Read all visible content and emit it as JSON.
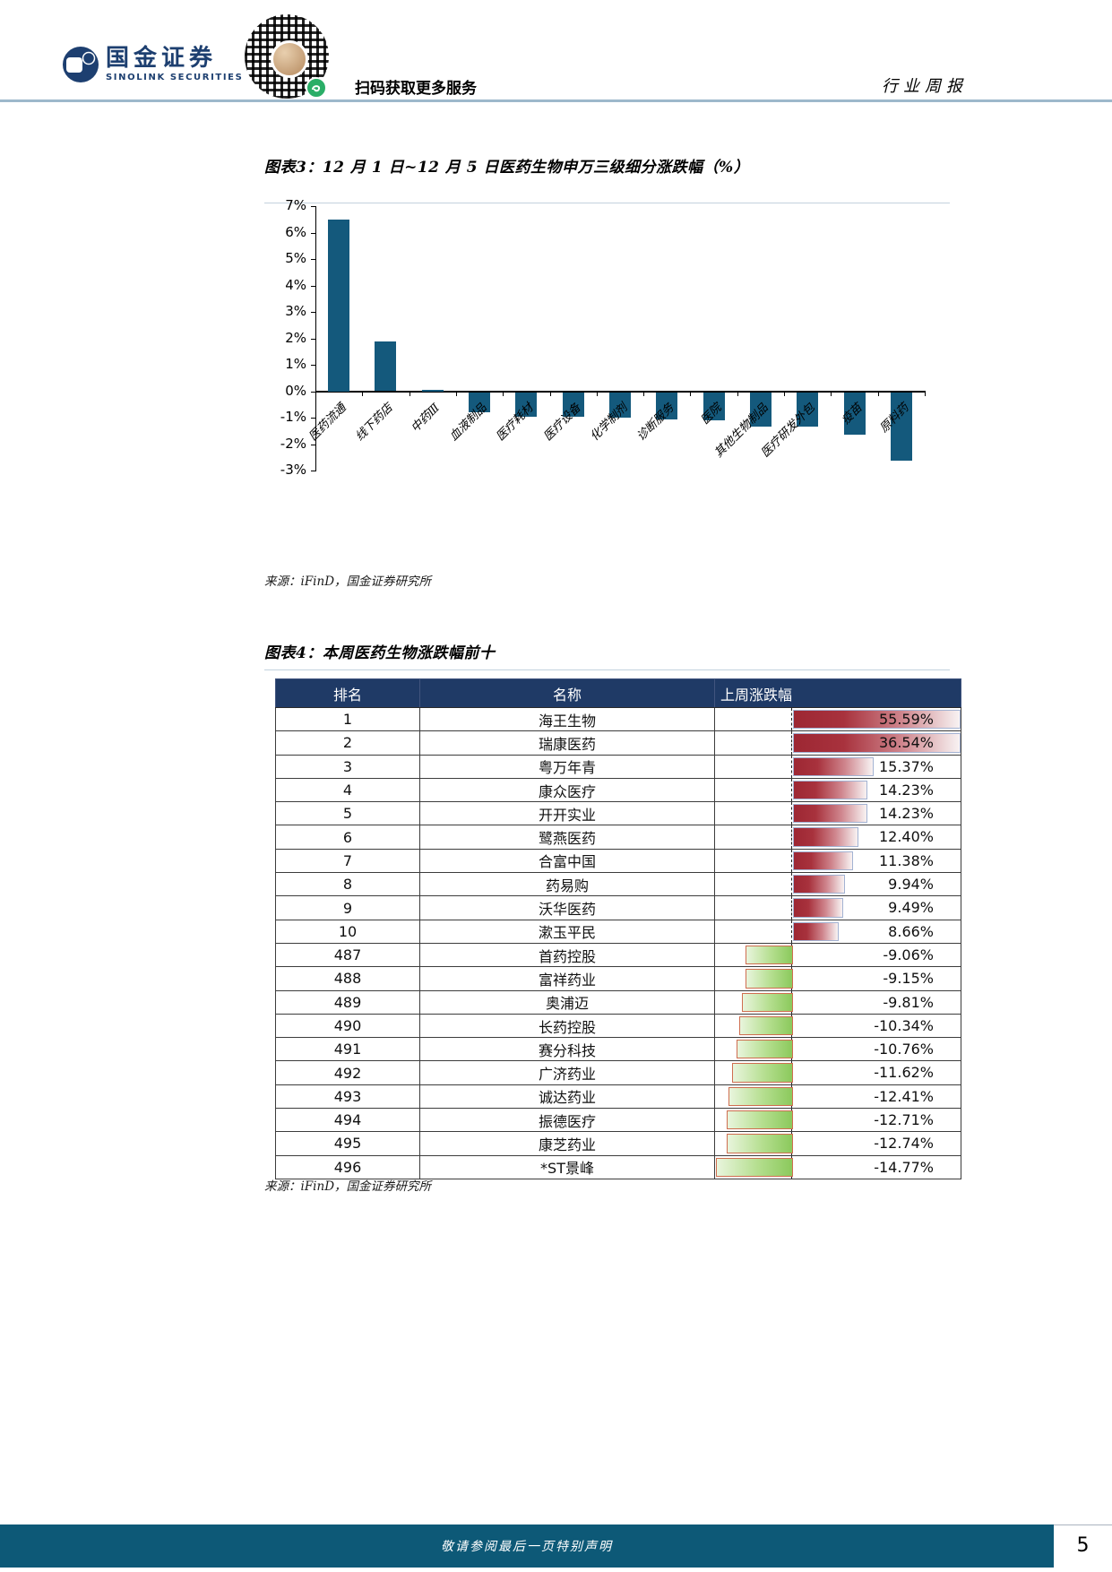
{
  "header": {
    "brand_cn": "国金证券",
    "brand_en": "SINOLINK SECURITIES",
    "qr_caption": "扫码获取更多服务",
    "report_type": "行业周报"
  },
  "figure3": {
    "title": "图表3：12 月 1 日~12 月 5 日医药生物申万三级细分涨跌幅（%）",
    "source": "来源：iFinD，国金证券研究所"
  },
  "chart_data": {
    "type": "bar",
    "title": "12 月 1 日~12 月 5 日医药生物申万三级细分涨跌幅（%）",
    "categories": [
      "医药流通",
      "线下药店",
      "中药Ⅲ",
      "血液制品",
      "医疗耗材",
      "医疗设备",
      "化学制剂",
      "诊断服务",
      "医院",
      "其他生物制品",
      "医疗研发外包",
      "疫苗",
      "原料药"
    ],
    "values": [
      6.5,
      1.87,
      0.05,
      -0.75,
      -0.92,
      -0.92,
      -0.95,
      -1.05,
      -1.08,
      -1.3,
      -1.32,
      -1.6,
      -2.6
    ],
    "xlabel": "",
    "ylabel": "",
    "ylim": [
      -3,
      7
    ],
    "ytick_step": 1,
    "ytick_format": "percent",
    "grid": false,
    "legend_position": "none",
    "bar_color": "#14597c"
  },
  "figure4": {
    "title": "图表4：本周医药生物涨跌幅前十",
    "source": "来源：iFinD，国金证券研究所",
    "table": {
      "columns": [
        "排名",
        "名称",
        "上周涨跌幅"
      ],
      "header_bg": "#1f3a66",
      "positive_bar_color": "#9d2733",
      "negative_bar_color": "#8bc95c",
      "rows": [
        {
          "rank": "1",
          "name": "海王生物",
          "change": "55.59%",
          "value": 55.59
        },
        {
          "rank": "2",
          "name": "瑞康医药",
          "change": "36.54%",
          "value": 36.54
        },
        {
          "rank": "3",
          "name": "粤万年青",
          "change": "15.37%",
          "value": 15.37
        },
        {
          "rank": "4",
          "name": "康众医疗",
          "change": "14.23%",
          "value": 14.23
        },
        {
          "rank": "5",
          "name": "开开实业",
          "change": "14.23%",
          "value": 14.23
        },
        {
          "rank": "6",
          "name": "鹭燕医药",
          "change": "12.40%",
          "value": 12.4
        },
        {
          "rank": "7",
          "name": "合富中国",
          "change": "11.38%",
          "value": 11.38
        },
        {
          "rank": "8",
          "name": "药易购",
          "change": "9.94%",
          "value": 9.94
        },
        {
          "rank": "9",
          "name": "沃华医药",
          "change": "9.49%",
          "value": 9.49
        },
        {
          "rank": "10",
          "name": "漱玉平民",
          "change": "8.66%",
          "value": 8.66
        },
        {
          "rank": "487",
          "name": "首药控股",
          "change": "-9.06%",
          "value": -9.06
        },
        {
          "rank": "488",
          "name": "富祥药业",
          "change": "-9.15%",
          "value": -9.15
        },
        {
          "rank": "489",
          "name": "奥浦迈",
          "change": "-9.81%",
          "value": -9.81
        },
        {
          "rank": "490",
          "name": "长药控股",
          "change": "-10.34%",
          "value": -10.34
        },
        {
          "rank": "491",
          "name": "赛分科技",
          "change": "-10.76%",
          "value": -10.76
        },
        {
          "rank": "492",
          "name": "广济药业",
          "change": "-11.62%",
          "value": -11.62
        },
        {
          "rank": "493",
          "name": "诚达药业",
          "change": "-12.41%",
          "value": -12.41
        },
        {
          "rank": "494",
          "name": "振德医疗",
          "change": "-12.71%",
          "value": -12.71
        },
        {
          "rank": "495",
          "name": "康芝药业",
          "change": "-12.74%",
          "value": -12.74
        },
        {
          "rank": "496",
          "name": "*ST景峰",
          "change": "-14.77%",
          "value": -14.77
        }
      ]
    }
  },
  "footer": {
    "disclaimer": "敬请参阅最后一页特别声明",
    "page_number": "5"
  }
}
